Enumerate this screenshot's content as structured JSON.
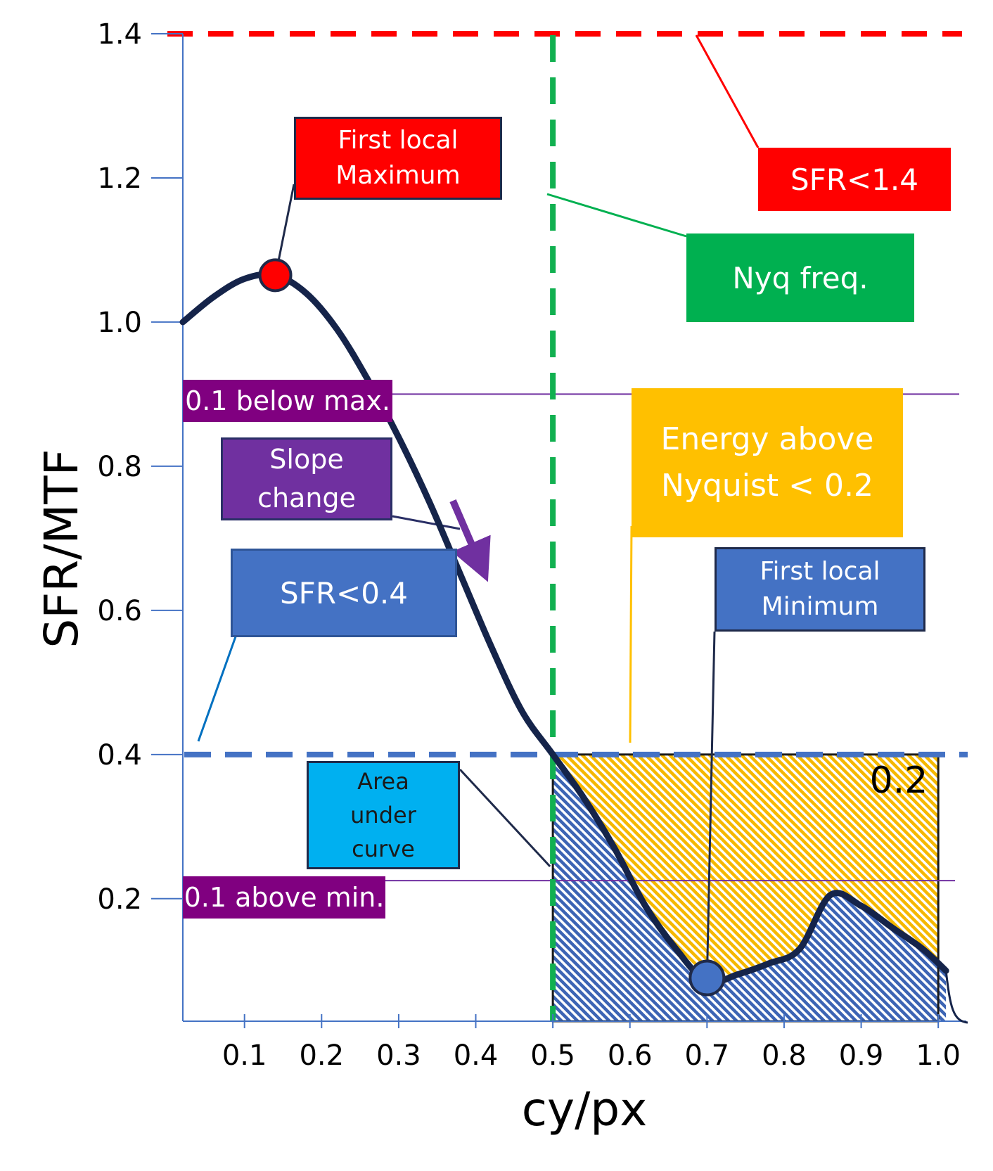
{
  "chart_data": {
    "type": "line",
    "title": "",
    "xlabel": "cy/px",
    "ylabel": "SFR/MTF",
    "xlim": [
      0.02,
      1.04
    ],
    "ylim": [
      0.03,
      1.4
    ],
    "xticks": [
      0.1,
      0.2,
      0.3,
      0.4,
      0.5,
      0.6,
      0.7,
      0.8,
      0.9,
      1.0
    ],
    "xtick_labels": [
      "0.1",
      "0.2",
      "0.3",
      "0.4",
      "0.5",
      "0.6",
      "0.7",
      "0.8",
      "0.9",
      "1.0"
    ],
    "yticks": [
      0.2,
      0.4,
      0.6,
      0.8,
      1.0,
      1.2,
      1.4
    ],
    "ytick_labels": [
      "0.2",
      "0.4",
      "0.6",
      "0.8",
      "1.0",
      "1.2",
      "1.4"
    ],
    "grid": false,
    "series": [
      {
        "x": [
          0.02,
          0.06,
          0.1,
          0.14,
          0.18,
          0.22,
          0.26,
          0.3,
          0.34,
          0.38,
          0.42,
          0.46,
          0.5,
          0.54,
          0.58,
          0.62,
          0.66,
          0.7,
          0.74,
          0.78,
          0.82,
          0.86,
          0.9,
          0.94,
          0.98,
          1.01
        ],
        "y": [
          1.0,
          1.035,
          1.06,
          1.065,
          1.04,
          0.99,
          0.92,
          0.84,
          0.75,
          0.65,
          0.55,
          0.46,
          0.4,
          0.34,
          0.27,
          0.19,
          0.13,
          0.085,
          0.095,
          0.11,
          0.13,
          0.205,
          0.19,
          0.16,
          0.13,
          0.1
        ]
      }
    ],
    "reference_lines": {
      "sfr_max_limit": 1.4,
      "sfr_min_limit": 0.4,
      "nyquist_x": 0.5,
      "below_max": 0.9,
      "above_min": 0.225
    },
    "points": {
      "first_local_maximum": {
        "x": 0.14,
        "y": 1.065
      },
      "first_local_minimum": {
        "x": 0.7,
        "y": 0.09
      }
    },
    "energy_region": {
      "x": [
        0.5,
        1.0
      ],
      "y": [
        0.03,
        0.4
      ]
    }
  },
  "annotations": {
    "first_local_maximum": "First local\nMaximum",
    "sfr_below_1_4": "SFR<1.4",
    "nyq_freq": "Nyq freq.",
    "below_max": "0.1 below max.",
    "slope_change": "Slope\nchange",
    "energy_above_nyquist": "Energy above\nNyquist < 0.2",
    "sfr_below_0_4": "SFR<0.4",
    "first_local_minimum": "First local\nMinimum",
    "area_under_curve": "Area\nunder\ncurve",
    "energy_value": "0.2",
    "above_min": "0.1 above min."
  },
  "colors": {
    "curve": "#15244a",
    "max_limit_line": "#ff0000",
    "nyquist_line": "#11b050",
    "min_limit_line": "#4472c4",
    "purple": "#7030a0",
    "purple_label": "#800080",
    "orange": "#ffc000",
    "red_box": "#ff0000",
    "green_box": "#00b050",
    "blue_box": "#4472c4",
    "cyan_box": "#00b0f0",
    "hatch_blue": "#3c64b4",
    "hatch_orange": "#f5b800"
  }
}
